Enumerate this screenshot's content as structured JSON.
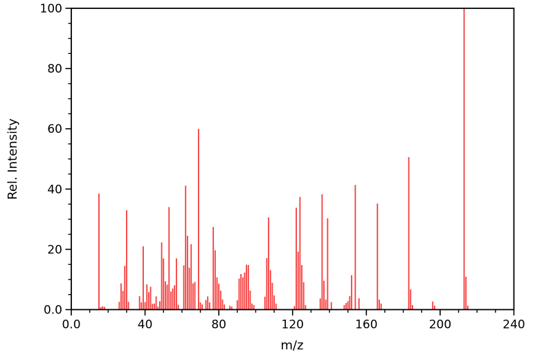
{
  "chart_data": {
    "type": "bar",
    "subtype": "mass-spectrum",
    "title": "",
    "xlabel": "m/z",
    "ylabel": "Rel. Intensity",
    "xlim": [
      0,
      240
    ],
    "ylim": [
      0,
      100
    ],
    "grid": false,
    "legend": "none",
    "x_major_ticks": [
      0,
      40,
      80,
      120,
      160,
      200,
      240
    ],
    "x_major_tick_labels": [
      "0.0",
      "40",
      "80",
      "120",
      "160",
      "200",
      "240"
    ],
    "x_minor_tick_step": 10,
    "y_major_ticks": [
      0,
      20,
      40,
      60,
      80,
      100
    ],
    "y_major_tick_labels": [
      "0.0",
      "20",
      "40",
      "60",
      "80",
      "100"
    ],
    "y_minor_tick_step": 5,
    "bar_color": "#f63b3b",
    "axis_color": "#000000",
    "background_color": "#ffffff",
    "peaks": [
      [
        15,
        38.5
      ],
      [
        16,
        0.8
      ],
      [
        17,
        1.1
      ],
      [
        18,
        0.9
      ],
      [
        26,
        2.6
      ],
      [
        27,
        8.7
      ],
      [
        28,
        6.2
      ],
      [
        29,
        14.5
      ],
      [
        30,
        33.0
      ],
      [
        31,
        2.6
      ],
      [
        37,
        4.5
      ],
      [
        38,
        2.4
      ],
      [
        39,
        21.0
      ],
      [
        40,
        2.5
      ],
      [
        41,
        8.4
      ],
      [
        42,
        5.8
      ],
      [
        43,
        7.6
      ],
      [
        44,
        1.9
      ],
      [
        45,
        2.0
      ],
      [
        46,
        4.4
      ],
      [
        47,
        1.0
      ],
      [
        48,
        2.8
      ],
      [
        49,
        22.3
      ],
      [
        50,
        17.0
      ],
      [
        51,
        9.4
      ],
      [
        52,
        8.3
      ],
      [
        53,
        34.0
      ],
      [
        54,
        6.0
      ],
      [
        55,
        7.0
      ],
      [
        56,
        8.1
      ],
      [
        57,
        17.0
      ],
      [
        58,
        1.6
      ],
      [
        61,
        14.7
      ],
      [
        62,
        41.1
      ],
      [
        63,
        24.5
      ],
      [
        64,
        13.9
      ],
      [
        65,
        21.7
      ],
      [
        66,
        8.7
      ],
      [
        67,
        9.2
      ],
      [
        69,
        60.0
      ],
      [
        70,
        2.4
      ],
      [
        71,
        1.7
      ],
      [
        73,
        3.2
      ],
      [
        74,
        4.4
      ],
      [
        75,
        2.4
      ],
      [
        77,
        27.4
      ],
      [
        78,
        19.7
      ],
      [
        79,
        10.7
      ],
      [
        80,
        8.6
      ],
      [
        81,
        6.3
      ],
      [
        82,
        3.4
      ],
      [
        83,
        1.7
      ],
      [
        86,
        1.3
      ],
      [
        87,
        1.0
      ],
      [
        90,
        3.1
      ],
      [
        91,
        10.3
      ],
      [
        92,
        11.8
      ],
      [
        93,
        10.7
      ],
      [
        94,
        12.3
      ],
      [
        95,
        14.9
      ],
      [
        96,
        14.8
      ],
      [
        97,
        6.3
      ],
      [
        98,
        2.0
      ],
      [
        99,
        1.5
      ],
      [
        105,
        4.3
      ],
      [
        106,
        17.1
      ],
      [
        107,
        30.6
      ],
      [
        108,
        13.1
      ],
      [
        109,
        8.9
      ],
      [
        110,
        4.7
      ],
      [
        111,
        2.0
      ],
      [
        121,
        1.2
      ],
      [
        122,
        33.8
      ],
      [
        123,
        19.2
      ],
      [
        124,
        37.4
      ],
      [
        125,
        14.8
      ],
      [
        126,
        9.1
      ],
      [
        127,
        1.5
      ],
      [
        135,
        3.7
      ],
      [
        136,
        38.3
      ],
      [
        137,
        9.6
      ],
      [
        138,
        3.3
      ],
      [
        139,
        30.3
      ],
      [
        141,
        2.5
      ],
      [
        148,
        1.5
      ],
      [
        149,
        2.2
      ],
      [
        150,
        2.8
      ],
      [
        151,
        4.5
      ],
      [
        152,
        11.4
      ],
      [
        154,
        41.4
      ],
      [
        156,
        3.8
      ],
      [
        166,
        35.2
      ],
      [
        167,
        3.3
      ],
      [
        168,
        2.0
      ],
      [
        183,
        50.6
      ],
      [
        184,
        6.7
      ],
      [
        185,
        1.5
      ],
      [
        196,
        2.7
      ],
      [
        197,
        1.3
      ],
      [
        213,
        99.9
      ],
      [
        214,
        10.9
      ],
      [
        215,
        1.3
      ]
    ]
  }
}
